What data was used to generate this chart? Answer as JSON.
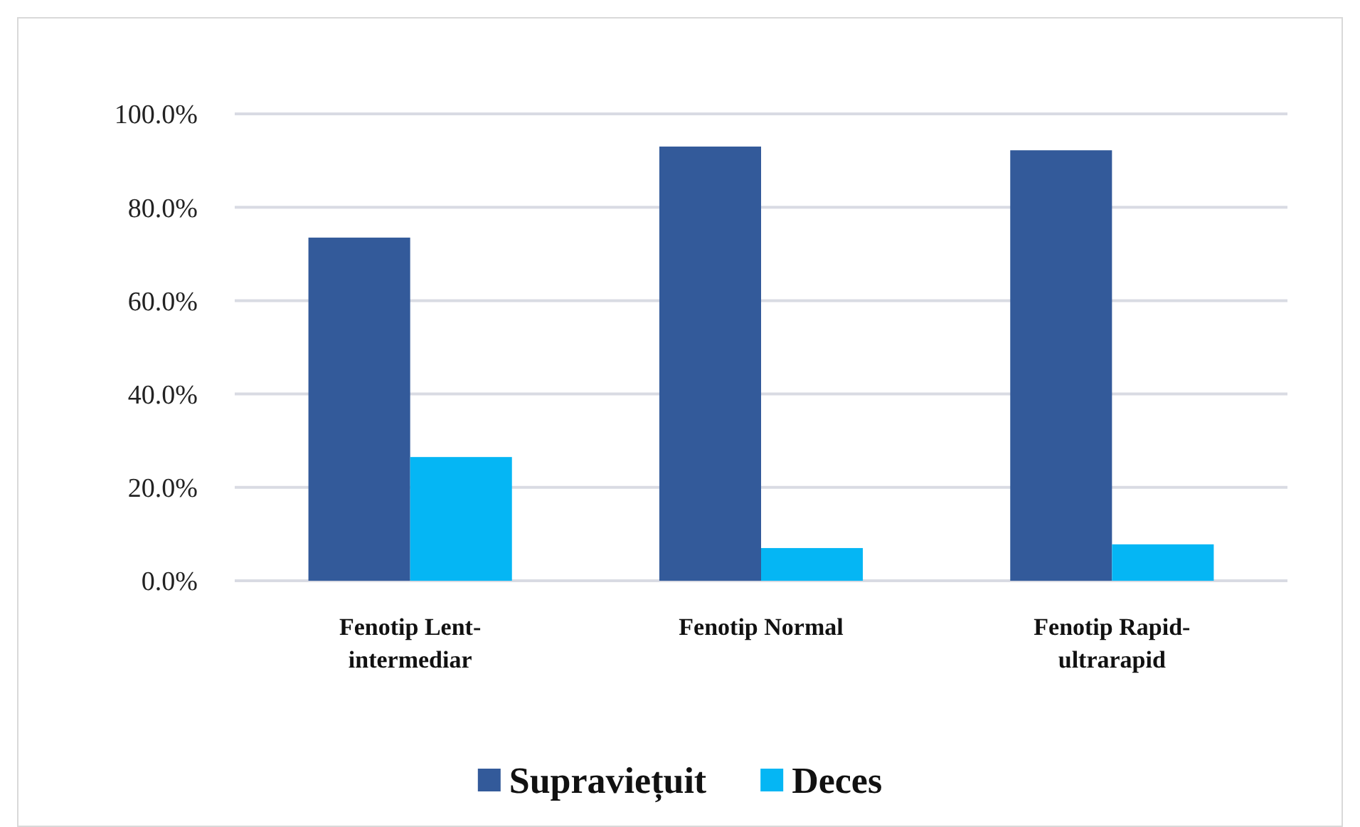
{
  "chart_data": {
    "type": "bar",
    "categories": [
      "Fenotip Lent-intermediar",
      "Fenotip Normal",
      "Fenotip Rapid-ultrarapid"
    ],
    "series": [
      {
        "name": "Supraviețuit",
        "color": "#335a9a",
        "values": [
          73.5,
          93.0,
          92.2
        ]
      },
      {
        "name": "Deces",
        "color": "#05b6f4",
        "values": [
          26.5,
          7.0,
          7.8
        ]
      }
    ],
    "ylim": [
      0,
      100
    ],
    "yticks": [
      {
        "value": 0,
        "label": "0.0%"
      },
      {
        "value": 20,
        "label": "20.0%"
      },
      {
        "value": 40,
        "label": "40.0%"
      },
      {
        "value": 60,
        "label": "60.0%"
      },
      {
        "value": 80,
        "label": "80.0%"
      },
      {
        "value": 100,
        "label": "100.0%"
      }
    ],
    "grid": "y",
    "legend": "bottom"
  }
}
